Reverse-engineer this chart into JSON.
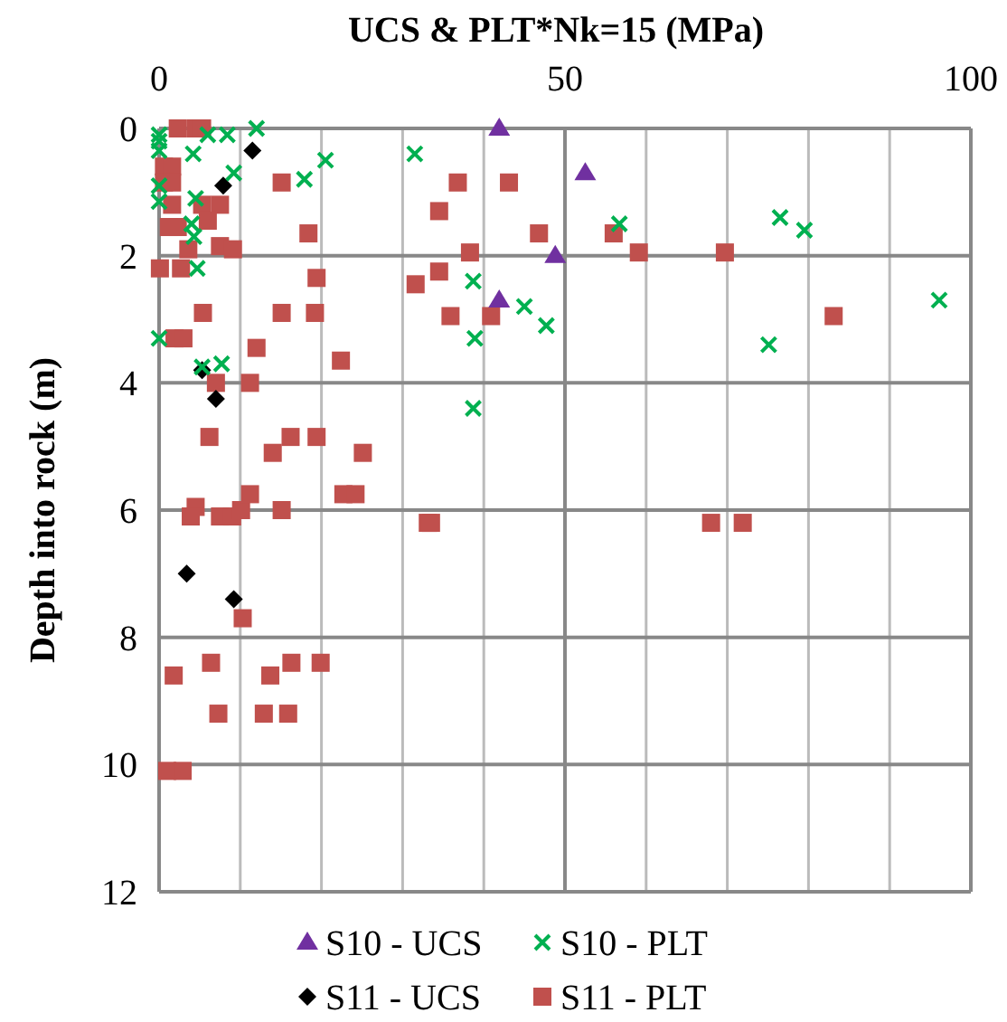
{
  "chart_data": {
    "type": "scatter",
    "xlabel": "UCS & PLT*Nk=15 (MPa)",
    "ylabel": "Depth into rock (m)",
    "xlim": [
      0,
      100
    ],
    "xticks": [
      0,
      {
        "value": 10,
        "label": null
      },
      {
        "value": 20,
        "label": null
      },
      {
        "value": 30,
        "label": null
      },
      {
        "value": 40,
        "label": null
      },
      50,
      {
        "value": 60,
        "label": null
      },
      {
        "value": 70,
        "label": null
      },
      {
        "value": 80,
        "label": null
      },
      {
        "value": 90,
        "label": null
      },
      100
    ],
    "ylim": [
      12,
      0
    ],
    "yticks": [
      0,
      2,
      4,
      6,
      8,
      10,
      12
    ],
    "grid": true,
    "legend": "bottom",
    "series": [
      {
        "name": "S10 - UCS",
        "color": "#7030a0",
        "marker": "triangle",
        "x": [
          41.9,
          52.5,
          48.8,
          41.9
        ],
        "values": [
          0.0,
          0.7,
          2.0,
          2.7
        ]
      },
      {
        "name": "S10 - PLT",
        "color": "#00b050",
        "marker": "cross",
        "x": [
          0,
          0,
          0,
          0,
          0,
          4.2,
          6,
          8.4,
          12,
          9.2,
          20.5,
          17.9,
          31.5,
          4.5,
          4,
          4.3,
          4.7,
          0,
          5.3,
          7.7,
          56.7,
          76.5,
          79.5,
          38.7,
          45,
          47.7,
          38.9,
          75.1,
          96.1,
          38.7
        ],
        "values": [
          0.1,
          0.2,
          0.35,
          0.9,
          1.15,
          0.4,
          0.1,
          0.1,
          0.0,
          0.7,
          0.5,
          0.8,
          0.4,
          1.1,
          1.5,
          1.7,
          2.2,
          3.3,
          3.75,
          3.7,
          1.5,
          1.4,
          1.6,
          2.4,
          2.8,
          3.1,
          3.3,
          3.4,
          2.7,
          4.4
        ]
      },
      {
        "name": "S11 - UCS",
        "color": "#000000",
        "marker": "diamond",
        "x": [
          11.5,
          7.9,
          5.3,
          7,
          3.4,
          9.2
        ],
        "values": [
          0.35,
          0.9,
          3.8,
          4.25,
          7.0,
          7.4
        ]
      },
      {
        "name": "S11 - PLT",
        "color": "#c0504d",
        "marker": "square",
        "x": [
          2.3,
          4.5,
          5.3,
          0.6,
          1.6,
          0.6,
          1.6,
          15.1,
          1.6,
          5.3,
          7.5,
          1.2,
          2.3,
          6,
          18.4,
          3.6,
          7.5,
          9.1,
          0.1,
          2.7,
          19.4,
          5.4,
          15.1,
          19.2,
          1.9,
          3,
          12,
          22.4,
          7,
          11.2,
          6.2,
          16.2,
          19.4,
          14,
          25.1,
          4.5,
          3.9,
          7.5,
          9,
          10.1,
          11.2,
          15.1,
          22.7,
          24.2,
          33.1,
          10.3,
          6.4,
          1.8,
          13.7,
          16.3,
          19.9,
          7.3,
          12.9,
          15.9,
          1,
          2.9,
          36.8,
          43.1,
          34.5,
          46.8,
          56,
          38.3,
          59.1,
          69.7,
          34.5,
          31.6,
          35.9,
          40.9,
          83.1,
          33.5,
          68,
          71.9
        ],
        "values": [
          0.0,
          0.0,
          0.0,
          0.6,
          0.6,
          0.85,
          0.85,
          0.85,
          1.2,
          1.2,
          1.2,
          1.55,
          1.55,
          1.45,
          1.65,
          1.9,
          1.85,
          1.9,
          2.2,
          2.2,
          2.35,
          2.9,
          2.9,
          2.9,
          3.3,
          3.3,
          3.45,
          3.65,
          4.0,
          4.0,
          4.85,
          4.85,
          4.85,
          5.1,
          5.1,
          5.95,
          6.1,
          6.1,
          6.1,
          6.0,
          5.75,
          6.0,
          5.75,
          5.75,
          6.2,
          7.7,
          8.4,
          8.6,
          8.6,
          8.4,
          8.4,
          9.2,
          9.2,
          9.2,
          10.1,
          10.1,
          0.85,
          0.85,
          1.3,
          1.65,
          1.65,
          1.95,
          1.95,
          1.95,
          2.25,
          2.45,
          2.95,
          2.95,
          2.95,
          6.2,
          6.2,
          6.2
        ]
      }
    ]
  }
}
